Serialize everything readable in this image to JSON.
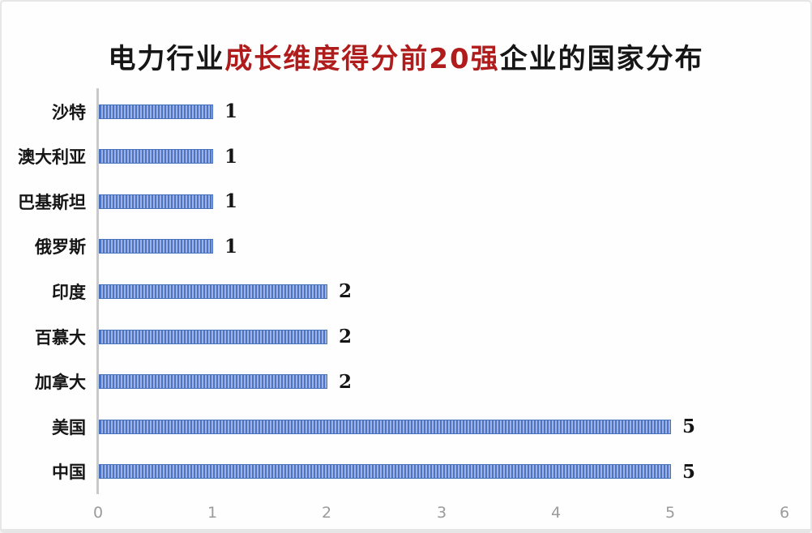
{
  "page": {
    "background": "#fefefe",
    "frame_border_color": "#e6e6e6"
  },
  "chart_data": {
    "type": "bar",
    "orientation": "horizontal",
    "title": "电力行业成长维度得分前20强企业的国家分布",
    "title_parts": [
      {
        "text": "电力行业",
        "color": "#161616"
      },
      {
        "text": "成长维度得分前20强",
        "color": "#b01c1c"
      },
      {
        "text": "企业的国家分布",
        "color": "#161616"
      }
    ],
    "categories": [
      "沙特",
      "澳大利亚",
      "巴基斯坦",
      "俄罗斯",
      "印度",
      "百慕大",
      "加拿大",
      "美国",
      "中国"
    ],
    "values": [
      1,
      1,
      1,
      1,
      2,
      2,
      2,
      5,
      5
    ],
    "value_labels": [
      "1",
      "1",
      "1",
      "1",
      "2",
      "2",
      "2",
      "5",
      "5"
    ],
    "xlabel": "",
    "ylabel": "",
    "xlim": [
      0,
      6
    ],
    "xticks": [
      "0",
      "1",
      "2",
      "3",
      "4",
      "5",
      "6"
    ],
    "grid": "off",
    "legend": "none",
    "colors": {
      "bar_stripe_dark": "#4d73c4",
      "bar_stripe_light": "#9fb3e2",
      "bar_border": "#4671bd",
      "axis_line": "#c9c9c9",
      "tick_label": "#9b9b9b"
    }
  }
}
